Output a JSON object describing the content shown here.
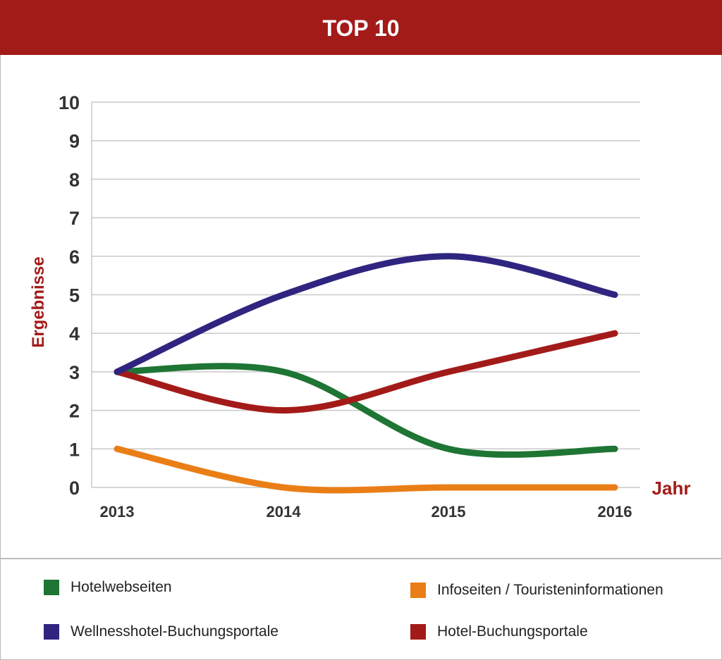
{
  "title": "TOP 10",
  "chart_data": {
    "type": "line",
    "x": [
      "2013",
      "2014",
      "2015",
      "2016"
    ],
    "ylim": [
      0,
      10
    ],
    "yticks": [
      0,
      1,
      2,
      3,
      4,
      5,
      6,
      7,
      8,
      9,
      10
    ],
    "xlabel": "Jahr",
    "ylabel": "Ergebnisse",
    "grid": true,
    "legend_position": "bottom",
    "series": [
      {
        "name": "Hotelwebseiten",
        "values": [
          3,
          3,
          1,
          1
        ],
        "color": "#1e7534"
      },
      {
        "name": "Infoseiten / Touristeninformationen",
        "values": [
          1,
          0,
          0,
          0
        ],
        "color": "#ea7e16"
      },
      {
        "name": "Wellnesshotel-Buchungsportale",
        "values": [
          3,
          5,
          6,
          5
        ],
        "color": "#2f2580"
      },
      {
        "name": "Hotel-Buchungsportale",
        "values": [
          3,
          2,
          3,
          4
        ],
        "color": "#a31b19"
      }
    ]
  },
  "legend": [
    {
      "label": "Hotelwebseiten",
      "color": "#1e7534"
    },
    {
      "label": "Infoseiten / Touristeninformationen",
      "color": "#ea7e16"
    },
    {
      "label": "Wellnesshotel-Buchungsportale",
      "color": "#2f2580"
    },
    {
      "label": "Hotel-Buchungsportale",
      "color": "#a31b19"
    }
  ],
  "colors": {
    "header": "#a31b19",
    "axis_title": "#a31b19",
    "grid": "#c8c8c8",
    "tick_text": "#333333"
  }
}
